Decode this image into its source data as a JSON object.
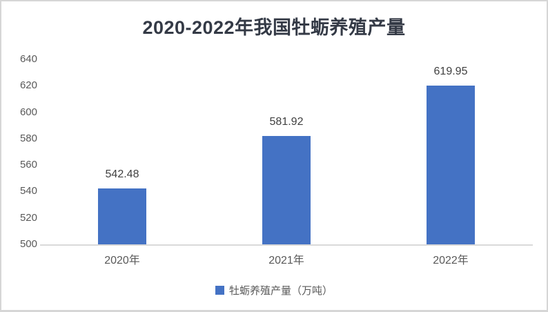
{
  "chart_data": {
    "type": "bar",
    "title": "2020-2022年我国牡蛎养殖产量",
    "categories": [
      "2020年",
      "2021年",
      "2022年"
    ],
    "series": [
      {
        "name": "牡蛎养殖产量（万吨）",
        "values": [
          542.48,
          581.92,
          619.95
        ]
      }
    ],
    "value_labels": [
      "542.48",
      "581.92",
      "619.95"
    ],
    "ylim": [
      500,
      640
    ],
    "yticks": [
      500,
      520,
      540,
      560,
      580,
      600,
      620,
      640
    ],
    "grid": false,
    "legend_position": "bottom",
    "bar_color": "#4472c4",
    "axis_line_color": "#d9d9d9",
    "tick_label_color": "#595959",
    "value_label_color": "#404040",
    "title_color": "#343a46"
  }
}
